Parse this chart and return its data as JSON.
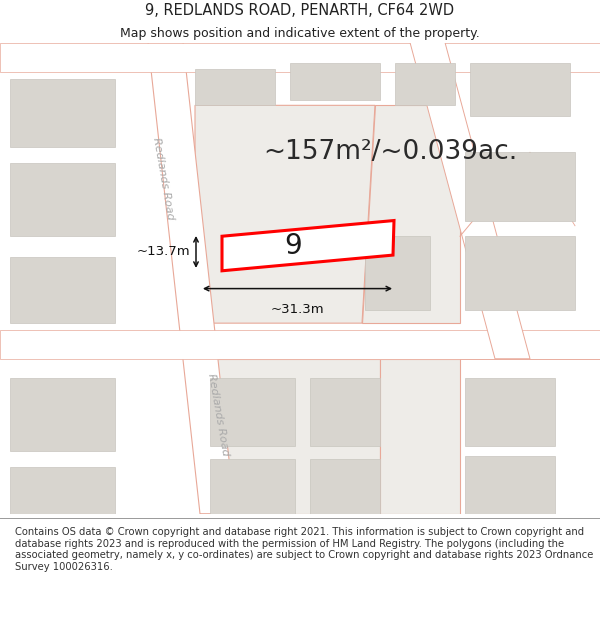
{
  "title": "9, REDLANDS ROAD, PENARTH, CF64 2WD",
  "subtitle": "Map shows position and indicative extent of the property.",
  "area_text": "~157m²/~0.039ac.",
  "width_text": "~31.3m",
  "height_text": "~13.7m",
  "property_number": "9",
  "footer_text": "Contains OS data © Crown copyright and database right 2021. This information is subject to Crown copyright and database rights 2023 and is reproduced with the permission of HM Land Registry. The polygons (including the associated geometry, namely x, y co-ordinates) are subject to Crown copyright and database rights 2023 Ordnance Survey 100026316.",
  "map_bg": "#eeece8",
  "road_fill": "#ffffff",
  "road_edge": "#e8a898",
  "building_fill": "#d8d5cf",
  "building_edge": "#c8c5be",
  "parcel_edge": "#e8a898",
  "parcel_fill": "#eeece8",
  "property_fill": "#ffffff",
  "property_stroke": "#ff0000",
  "text_color": "#222222",
  "dim_color": "#111111",
  "road_label_color": "#aaaaaa",
  "footer_text_color": "#333333",
  "title_fontsize": 10.5,
  "subtitle_fontsize": 9,
  "area_fontsize": 19,
  "dim_fontsize": 9.5,
  "num_fontsize": 20,
  "footer_fontsize": 7.2,
  "road_label_fontsize": 8
}
